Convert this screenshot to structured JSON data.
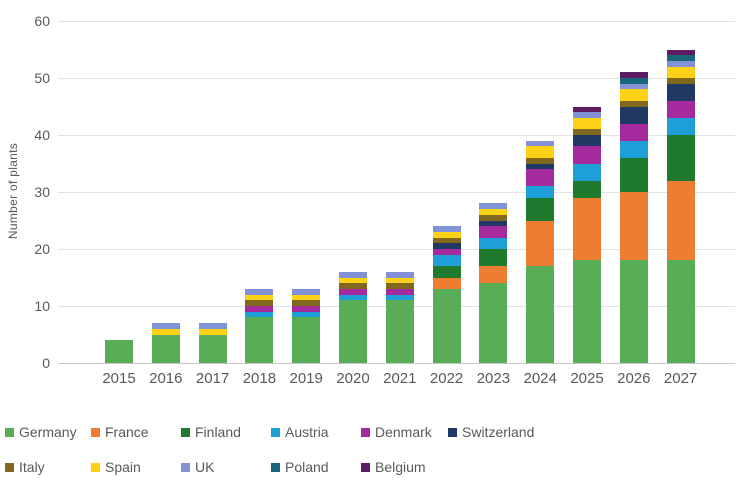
{
  "chart_data": {
    "type": "bar",
    "stacked": true,
    "title": "",
    "xlabel": "",
    "ylabel": "Number of plants",
    "ylim": [
      0,
      60
    ],
    "yticks": [
      0,
      10,
      20,
      30,
      40,
      50,
      60
    ],
    "grid": true,
    "legend_position": "bottom",
    "legend_rows": [
      6,
      5
    ],
    "categories": [
      "2015",
      "2016",
      "2017",
      "2018",
      "2019",
      "2020",
      "2021",
      "2022",
      "2023",
      "2024",
      "2025",
      "2026",
      "2027"
    ],
    "series": [
      {
        "name": "Germany",
        "color": "#58AD56",
        "values": [
          4,
          5,
          5,
          8,
          8,
          11,
          11,
          13,
          14,
          17,
          18,
          18,
          18
        ]
      },
      {
        "name": "France",
        "color": "#ED7D31",
        "values": [
          0,
          0,
          0,
          0,
          0,
          0,
          0,
          2,
          3,
          8,
          11,
          12,
          14
        ]
      },
      {
        "name": "Finland",
        "color": "#1F7A2E",
        "values": [
          0,
          0,
          0,
          0,
          0,
          0,
          0,
          2,
          3,
          4,
          3,
          6,
          8
        ]
      },
      {
        "name": "Austria",
        "color": "#1E9FD8",
        "values": [
          0,
          0,
          0,
          1,
          1,
          1,
          1,
          2,
          2,
          2,
          3,
          3,
          3
        ]
      },
      {
        "name": "Denmark",
        "color": "#A52A9E",
        "values": [
          0,
          0,
          0,
          1,
          1,
          1,
          1,
          1,
          2,
          3,
          3,
          3,
          3
        ]
      },
      {
        "name": "Switzerland",
        "color": "#1F3864",
        "values": [
          0,
          0,
          0,
          0,
          0,
          0,
          0,
          1,
          1,
          1,
          2,
          3,
          3
        ]
      },
      {
        "name": "Italy",
        "color": "#80681F",
        "values": [
          0,
          0,
          0,
          1,
          1,
          1,
          1,
          1,
          1,
          1,
          1,
          1,
          1
        ]
      },
      {
        "name": "Spain",
        "color": "#FCD116",
        "values": [
          0,
          1,
          1,
          1,
          1,
          1,
          1,
          1,
          1,
          2,
          2,
          2,
          2
        ]
      },
      {
        "name": "UK",
        "color": "#8193D6",
        "values": [
          0,
          1,
          1,
          1,
          1,
          1,
          1,
          1,
          1,
          1,
          1,
          1,
          1
        ]
      },
      {
        "name": "Poland",
        "color": "#186679",
        "values": [
          0,
          0,
          0,
          0,
          0,
          0,
          0,
          0,
          0,
          0,
          0,
          1,
          1
        ]
      },
      {
        "name": "Belgium",
        "color": "#5E1A63",
        "values": [
          0,
          0,
          0,
          0,
          0,
          0,
          0,
          0,
          0,
          0,
          1,
          1,
          1
        ]
      }
    ],
    "totals": [
      4,
      7,
      7,
      13,
      13,
      16,
      16,
      24,
      28,
      39,
      45,
      51,
      55
    ]
  }
}
